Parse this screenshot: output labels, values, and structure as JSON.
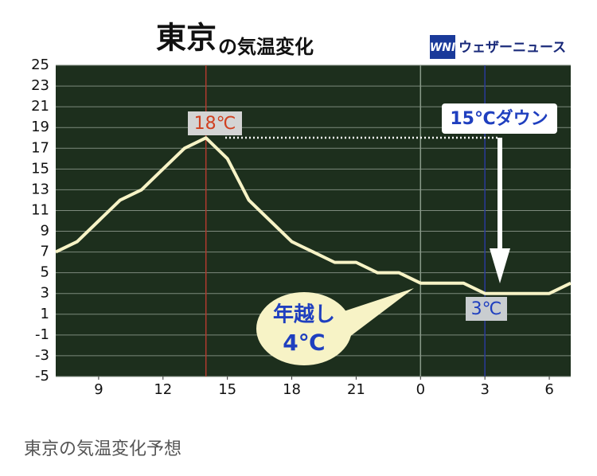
{
  "chart_data": {
    "type": "line",
    "title": "東京",
    "title_suffix": "の気温変化",
    "logo": "WNI",
    "brand": "ウェザーニュース",
    "x": [
      7,
      8,
      9,
      10,
      11,
      12,
      13,
      14,
      15,
      16,
      17,
      18,
      19,
      20,
      21,
      22,
      23,
      24,
      25,
      26,
      27,
      28,
      29,
      30,
      31
    ],
    "values": [
      7,
      8,
      10,
      12,
      13,
      15,
      17,
      18,
      16,
      12,
      10,
      8,
      7,
      6,
      6,
      5,
      5,
      4,
      4,
      4,
      3,
      3,
      3,
      3,
      4
    ],
    "color": "#f7f3c6",
    "xlim": [
      7,
      31
    ],
    "xticks": [
      9,
      12,
      15,
      18,
      21,
      {
        "value": 24,
        "label": "0"
      },
      {
        "value": 27,
        "label": "3"
      },
      {
        "value": 30,
        "label": "6"
      }
    ],
    "ylim": [
      -5,
      25
    ],
    "yticks": [
      -5,
      -3,
      -1,
      1,
      3,
      5,
      7,
      9,
      11,
      13,
      15,
      17,
      19,
      21,
      23,
      25
    ],
    "grid": true,
    "vlines": [
      {
        "x": 14,
        "color": "#b03a2e"
      },
      {
        "x": 24,
        "color": "#8a9a8a"
      },
      {
        "x": 27,
        "color": "#2a3a9a"
      }
    ],
    "annotations": [
      "18℃",
      "15℃ダウン",
      "3℃",
      "年越し",
      "4℃"
    ],
    "caption": "東京の気温変化予想"
  }
}
